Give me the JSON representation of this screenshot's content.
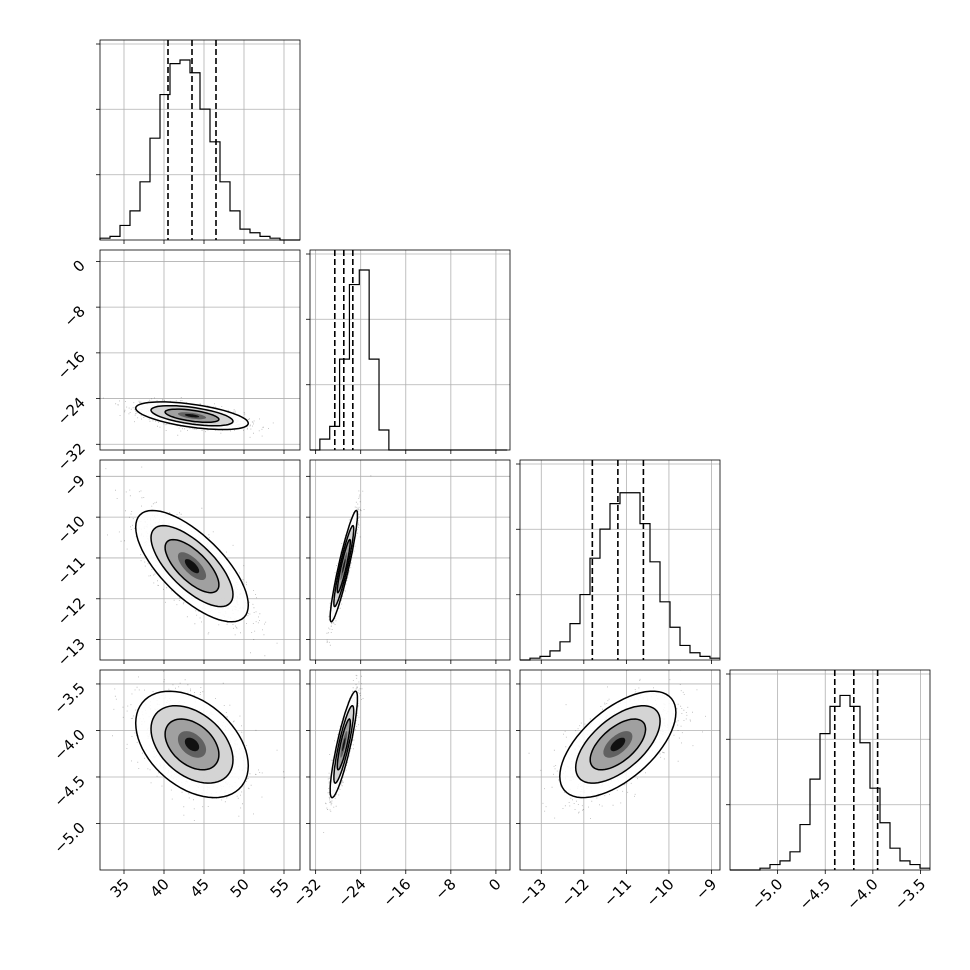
{
  "chart_data": {
    "type": "corner",
    "title": "",
    "grid": true,
    "parameters": [
      {
        "xlim": [
          32.0,
          57.0
        ],
        "ticks": [
          35,
          40,
          45,
          50,
          55
        ],
        "tick_labels": [
          "35",
          "40",
          "45",
          "50",
          "55"
        ]
      },
      {
        "ylim": [
          -33.0,
          2.0
        ],
        "xlim": [
          -33.0,
          2.5
        ],
        "ticks": [
          -32,
          -24,
          -16,
          -8,
          0
        ],
        "tick_labels": [
          "−32",
          "−24",
          "−16",
          "−8",
          "0"
        ]
      },
      {
        "xlim": [
          -13.5,
          -8.8
        ],
        "ylim": [
          -13.5,
          -8.6
        ],
        "ticks": [
          -13,
          -12,
          -11,
          -10,
          -9
        ],
        "tick_labels": [
          "−13",
          "−12",
          "−11",
          "−10",
          "−9"
        ]
      },
      {
        "xlim": [
          -5.5,
          -3.4
        ],
        "ylim": [
          -5.5,
          -3.35
        ],
        "ticks": [
          -5.0,
          -4.5,
          -4.0,
          -3.5
        ],
        "tick_labels": [
          "−5.0",
          "−4.5",
          "−4.0",
          "−3.5"
        ]
      }
    ],
    "histograms": [
      {
        "param": 0,
        "edges_start": 32.0,
        "bin_width": 1.25,
        "counts": [
          1,
          2,
          8,
          16,
          32,
          56,
          80,
          97,
          99,
          92,
          72,
          54,
          32,
          16,
          6,
          4,
          2,
          1,
          0,
          0
        ],
        "max": 100,
        "quantiles": [
          40.5,
          43.5,
          46.5
        ]
      },
      {
        "param": 1,
        "edges_start": -33.0,
        "bin_width": 1.75,
        "counts": [
          0,
          6,
          13,
          50,
          91,
          99,
          50,
          11,
          0,
          0,
          0,
          0,
          0,
          0,
          0,
          0,
          0,
          0,
          0,
          0
        ],
        "max": 100,
        "quantiles": [
          -28.6,
          -27.0,
          -25.4
        ]
      },
      {
        "param": 2,
        "edges_start": -13.5,
        "bin_width": 0.235,
        "counts": [
          0,
          1,
          2,
          5,
          10,
          20,
          36,
          56,
          72,
          86,
          92,
          92,
          75,
          54,
          32,
          18,
          8,
          4,
          2,
          1
        ],
        "max": 100,
        "quantiles": [
          -11.8,
          -11.2,
          -10.6
        ]
      },
      {
        "param": 3,
        "edges_start": -5.5,
        "bin_width": 0.105,
        "counts": [
          0,
          0,
          0,
          1,
          3,
          5,
          10,
          25,
          50,
          75,
          90,
          96,
          90,
          70,
          45,
          26,
          12,
          5,
          3,
          1
        ],
        "max": 100,
        "quantiles": [
          -4.4,
          -4.2,
          -3.95
        ]
      }
    ],
    "pairs": [
      {
        "x": 0,
        "y": 1,
        "mean": [
          43.5,
          -27.0
        ],
        "sd": [
          3.2,
          1.1
        ],
        "rho": -0.55
      },
      {
        "x": 0,
        "y": 2,
        "mean": [
          43.5,
          -11.2
        ],
        "sd": [
          3.2,
          0.62
        ],
        "rho": -0.7
      },
      {
        "x": 1,
        "y": 2,
        "mean": [
          -27.0,
          -11.2
        ],
        "sd": [
          1.1,
          0.62
        ],
        "rho": 0.92
      },
      {
        "x": 0,
        "y": 3,
        "mean": [
          43.5,
          -4.15
        ],
        "sd": [
          3.2,
          0.26
        ],
        "rho": -0.4
      },
      {
        "x": 1,
        "y": 3,
        "mean": [
          -27.0,
          -4.15
        ],
        "sd": [
          1.1,
          0.26
        ],
        "rho": 0.86
      },
      {
        "x": 2,
        "y": 3,
        "mean": [
          -11.2,
          -4.15
        ],
        "sd": [
          0.62,
          0.26
        ],
        "rho": 0.6
      }
    ]
  }
}
